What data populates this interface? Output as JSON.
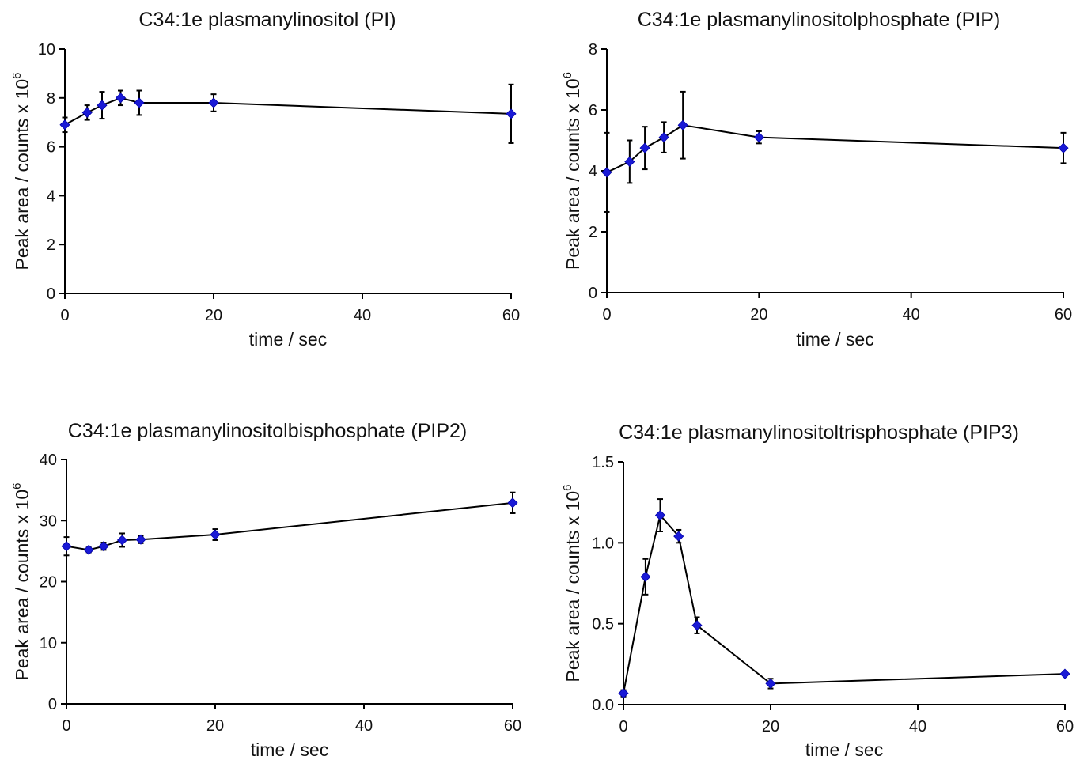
{
  "colors": {
    "marker": "#1a1ad6",
    "line": "#000000"
  },
  "chart_data": [
    {
      "type": "line",
      "title": "C34:1e plasmanylinositol (PI)",
      "xlabel": "time / sec",
      "ylabel_main": "Peak area / counts x 10",
      "ylabel_exp": "6",
      "xlim": [
        0,
        60
      ],
      "ylim": [
        0,
        10
      ],
      "xticks": [
        0,
        20,
        40,
        60
      ],
      "yticks": [
        0,
        2,
        4,
        6,
        8,
        10
      ],
      "ytick_labels": [
        "0",
        "2",
        "4",
        "6",
        "8",
        "10"
      ],
      "x": [
        0,
        3,
        5,
        7.5,
        10,
        20,
        60
      ],
      "y": [
        6.9,
        7.4,
        7.7,
        8.0,
        7.8,
        7.8,
        7.35
      ],
      "err": [
        0.3,
        0.3,
        0.55,
        0.3,
        0.5,
        0.35,
        1.2
      ]
    },
    {
      "type": "line",
      "title": "C34:1e plasmanylinositolphosphate (PIP)",
      "xlabel": "time / sec",
      "ylabel_main": "Peak area / counts x 10",
      "ylabel_exp": "6",
      "xlim": [
        0,
        60
      ],
      "ylim": [
        0,
        8
      ],
      "xticks": [
        0,
        20,
        40,
        60
      ],
      "yticks": [
        0,
        2,
        4,
        6,
        8
      ],
      "ytick_labels": [
        "0",
        "2",
        "4",
        "6",
        "8"
      ],
      "x": [
        0,
        3,
        5,
        7.5,
        10,
        20,
        60
      ],
      "y": [
        3.95,
        4.3,
        4.75,
        5.1,
        5.5,
        5.1,
        4.75
      ],
      "err": [
        1.3,
        0.7,
        0.7,
        0.5,
        1.1,
        0.2,
        0.5
      ]
    },
    {
      "type": "line",
      "title": "C34:1e plasmanylinositolbisphosphate (PIP2)",
      "xlabel": "time / sec",
      "ylabel_main": "Peak area / counts x 10",
      "ylabel_exp": "6",
      "xlim": [
        0,
        60
      ],
      "ylim": [
        0,
        40
      ],
      "xticks": [
        0,
        20,
        40,
        60
      ],
      "yticks": [
        0,
        10,
        20,
        30,
        40
      ],
      "ytick_labels": [
        "0",
        "10",
        "20",
        "30",
        "40"
      ],
      "x": [
        0,
        3,
        5,
        7.5,
        10,
        20,
        60
      ],
      "y": [
        25.8,
        25.2,
        25.8,
        26.8,
        26.9,
        27.7,
        32.9
      ],
      "err": [
        1.5,
        0.4,
        0.6,
        1.1,
        0.6,
        0.9,
        1.7
      ]
    },
    {
      "type": "line",
      "title": "C34:1e plasmanylinositoltrisphosphate (PIP3)",
      "xlabel": "time / sec",
      "ylabel_main": "Peak area / counts x 10",
      "ylabel_exp": "6",
      "xlim": [
        0,
        60
      ],
      "ylim": [
        0,
        1.5
      ],
      "xticks": [
        0,
        20,
        40,
        60
      ],
      "yticks": [
        0,
        0.5,
        1.0,
        1.5
      ],
      "ytick_labels": [
        "0.0",
        "0.5",
        "1.0",
        "1.5"
      ],
      "x": [
        0,
        3,
        5,
        7.5,
        10,
        20,
        60
      ],
      "y": [
        0.07,
        0.79,
        1.17,
        1.04,
        0.49,
        0.13,
        0.19
      ],
      "err": [
        0.02,
        0.11,
        0.1,
        0.04,
        0.05,
        0.03,
        0.01
      ]
    }
  ]
}
